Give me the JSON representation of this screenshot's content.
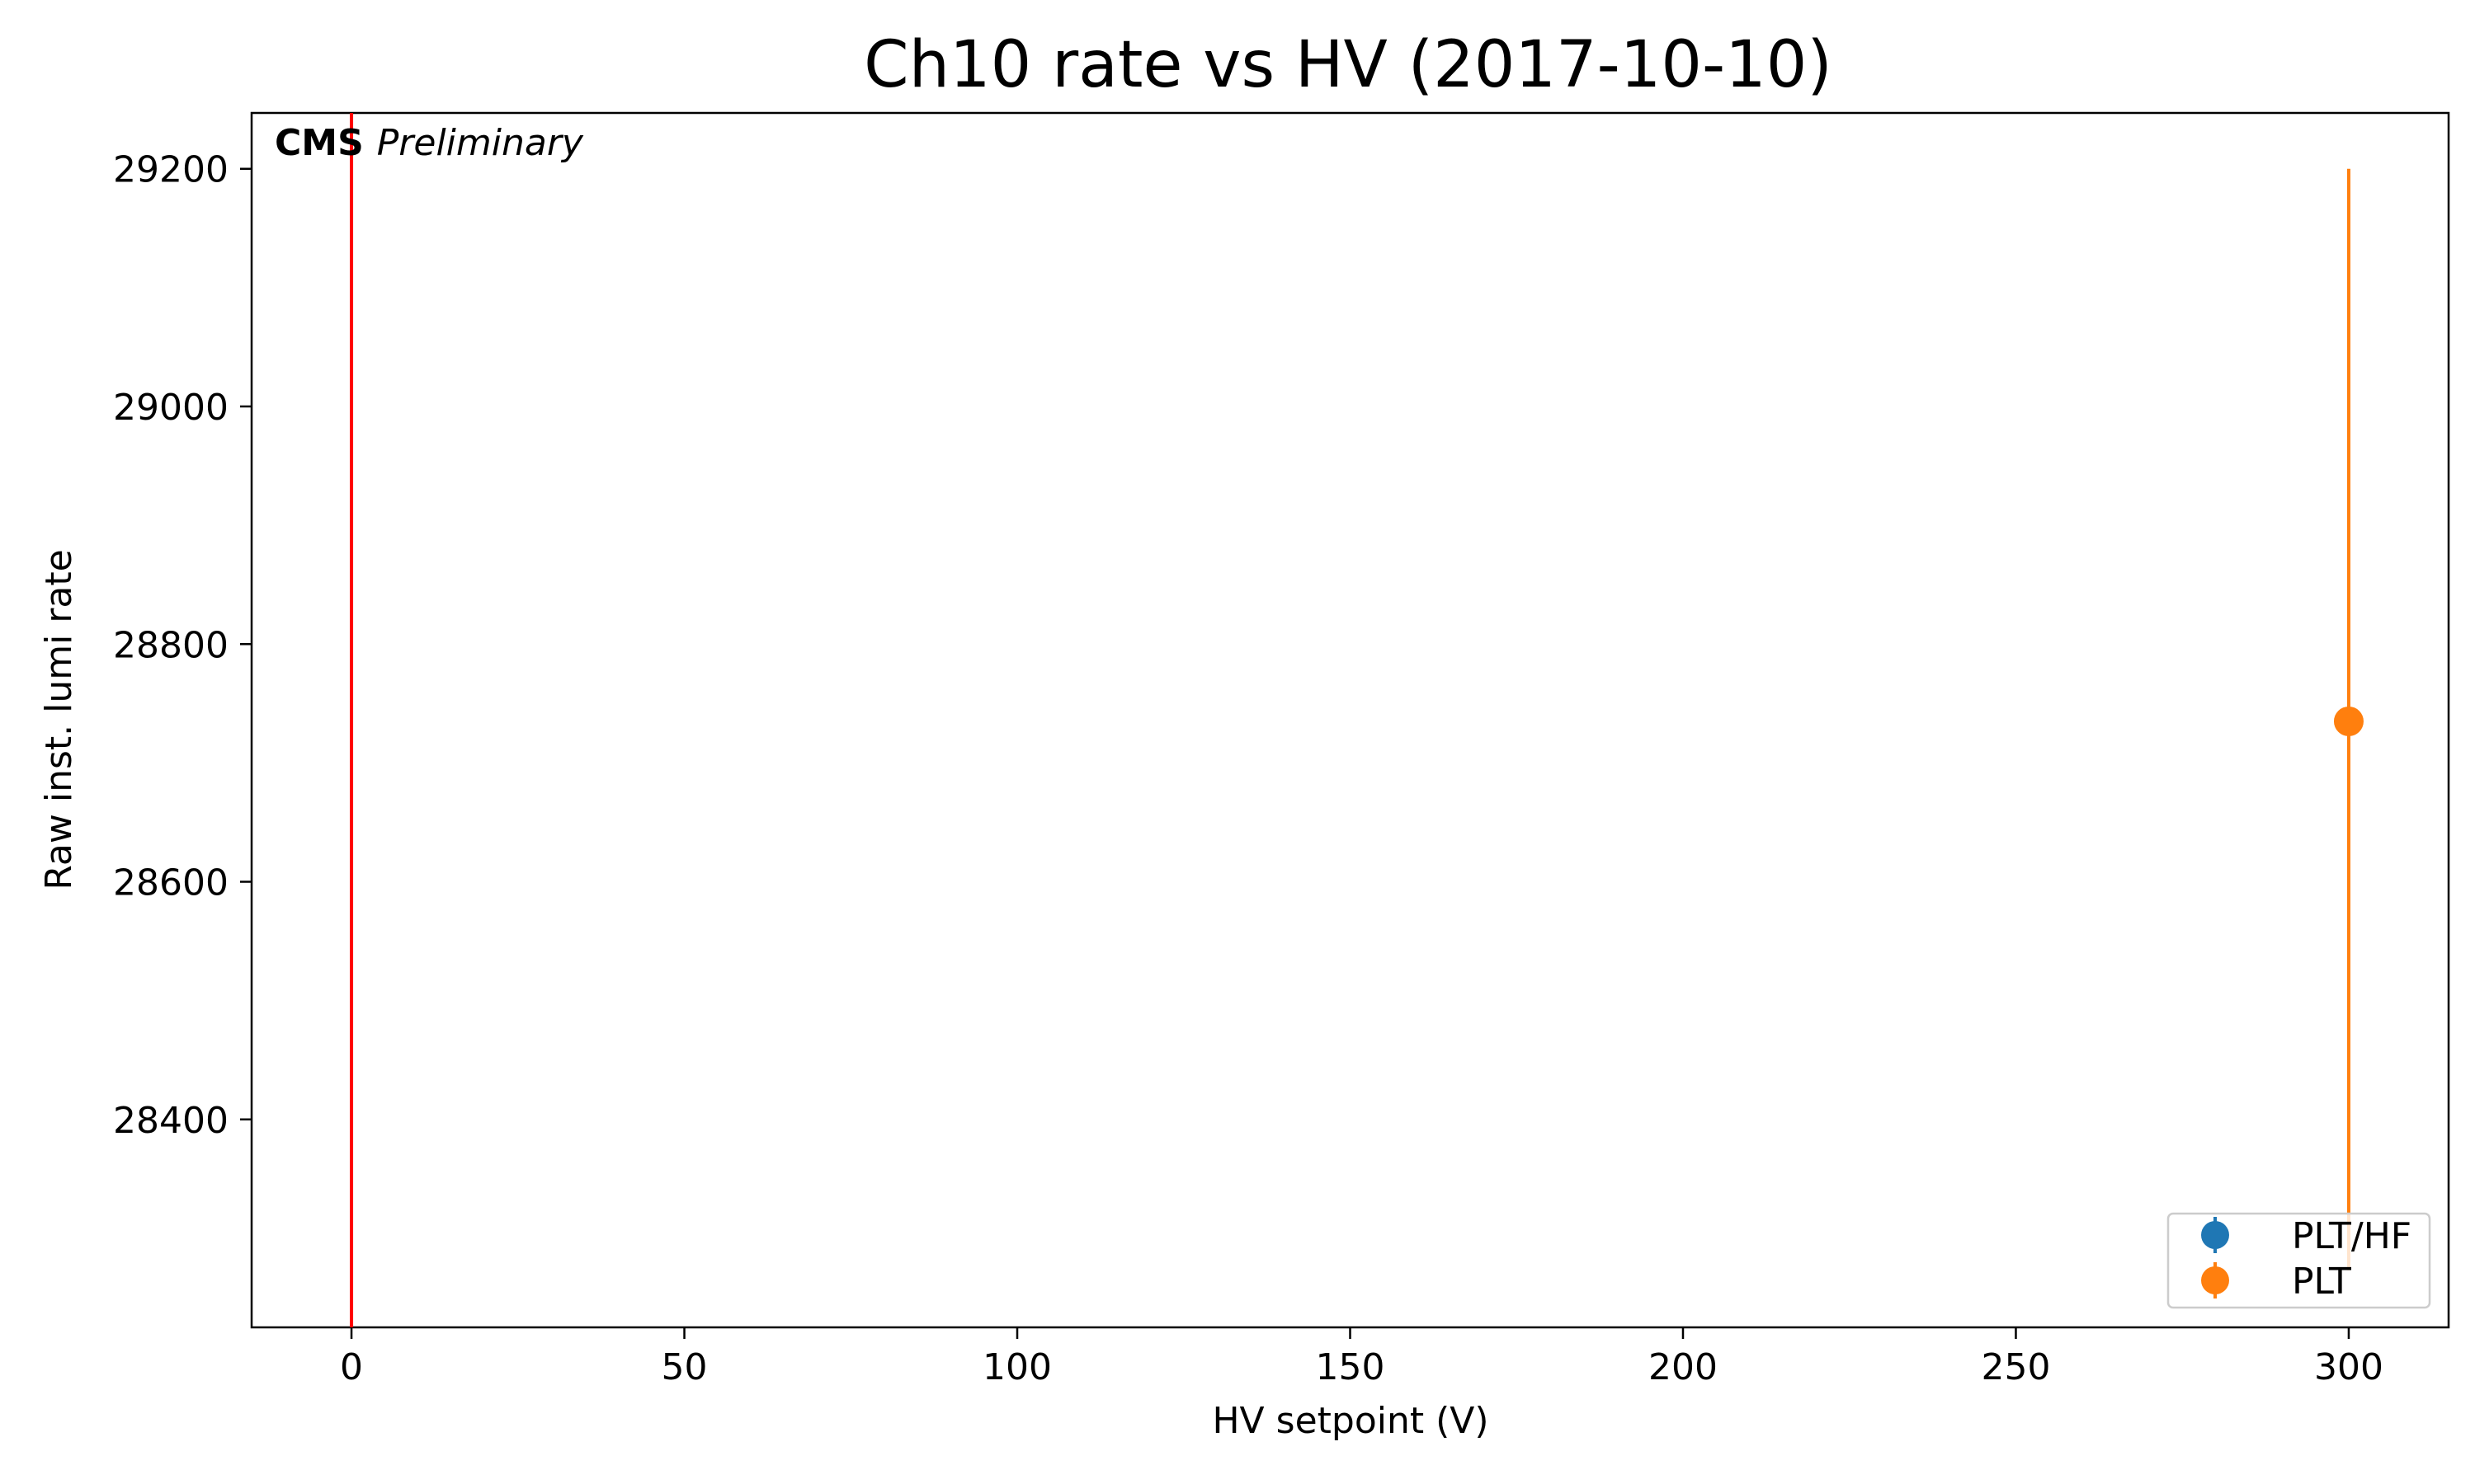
{
  "chart_data": {
    "type": "scatter",
    "title": "Ch10 rate vs HV (2017-10-10)",
    "xlabel": "HV setpoint (V)",
    "ylabel": "Raw inst. lumi rate",
    "xlim": [
      -15,
      315
    ],
    "ylim": [
      28225,
      29247
    ],
    "x_ticks": [
      0,
      50,
      100,
      150,
      200,
      250,
      300
    ],
    "y_ticks": [
      28400,
      28600,
      28800,
      29000,
      29200
    ],
    "grid": false,
    "legend_position": "lower-right",
    "watermark": {
      "bold": "CMS",
      "italic": "Preliminary"
    },
    "reference_line": {
      "x": 0,
      "color": "#ff0000"
    },
    "series": [
      {
        "name": "PLT/HF",
        "color": "#1f77b4",
        "points": []
      },
      {
        "name": "PLT",
        "color": "#ff7f0e",
        "points": [
          {
            "x": 300,
            "y": 28735,
            "yerr_low": 28273,
            "yerr_high": 29200
          }
        ]
      }
    ]
  }
}
